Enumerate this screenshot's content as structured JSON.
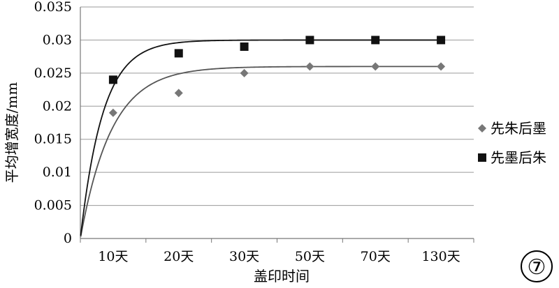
{
  "chart_data": {
    "type": "scatter",
    "title": "",
    "xlabel": "盖印时间",
    "ylabel": "平均增宽度/mm",
    "categories": [
      "10天",
      "20天",
      "30天",
      "50天",
      "70天",
      "130天"
    ],
    "ylim": [
      0,
      0.035
    ],
    "yticks": [
      "0",
      "0.005",
      "0.01",
      "0.015",
      "0.02",
      "0.025",
      "0.03",
      "0.035"
    ],
    "grid": "horizontal",
    "legend_position": "right",
    "series": [
      {
        "name": "先朱后墨",
        "marker": "diamond",
        "color": "#777777",
        "values": [
          0.019,
          0.022,
          0.025,
          0.026,
          0.026,
          0.026
        ],
        "trendline": true
      },
      {
        "name": "先墨后朱",
        "marker": "square",
        "color": "#111111",
        "values": [
          0.024,
          0.028,
          0.029,
          0.03,
          0.03,
          0.03
        ],
        "trendline": true
      }
    ]
  },
  "figure_badge": "⑦"
}
